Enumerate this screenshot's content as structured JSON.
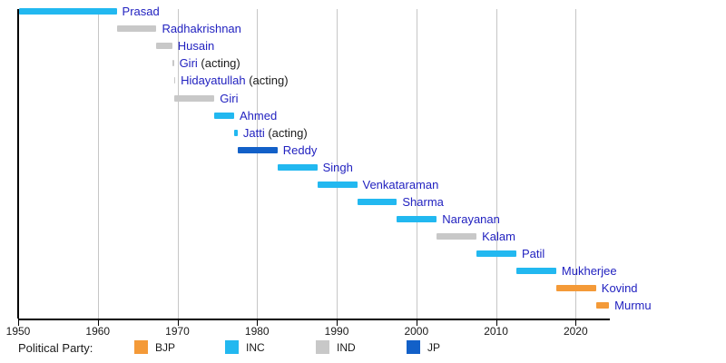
{
  "chart_data": {
    "type": "bar",
    "variant": "horizontal-gantt-timeline",
    "title": "",
    "x_axis": {
      "ticks": [
        "1950",
        "1960",
        "1970",
        "1980",
        "1990",
        "2000",
        "2010",
        "2020"
      ],
      "tick_years": [
        1950,
        1960,
        1970,
        1980,
        1990,
        2000,
        2010,
        2020
      ],
      "range": [
        1950,
        2024.3
      ],
      "grid": true
    },
    "parties": {
      "BJP": "#f49a38",
      "INC": "#22b8f0",
      "IND": "#c8c8c8",
      "JP": "#1260c8"
    },
    "bars": [
      {
        "label": "Prasad",
        "suffix": "",
        "party": "INC",
        "start": 1950.07,
        "end": 1962.37
      },
      {
        "label": "Radhakrishnan",
        "suffix": "",
        "party": "IND",
        "start": 1962.37,
        "end": 1967.37
      },
      {
        "label": "Husain",
        "suffix": "",
        "party": "IND",
        "start": 1967.37,
        "end": 1969.34
      },
      {
        "label": "Giri",
        "suffix": " (acting)",
        "party": "IND",
        "start": 1969.34,
        "end": 1969.55
      },
      {
        "label": "Hidayatullah",
        "suffix": " (acting)",
        "party": "IND",
        "start": 1969.55,
        "end": 1969.64
      },
      {
        "label": "Giri",
        "suffix": "",
        "party": "IND",
        "start": 1969.64,
        "end": 1974.64
      },
      {
        "label": "Ahmed",
        "suffix": "",
        "party": "INC",
        "start": 1974.64,
        "end": 1977.12
      },
      {
        "label": "Jatti",
        "suffix": " (acting)",
        "party": "INC",
        "start": 1977.12,
        "end": 1977.56
      },
      {
        "label": "Reddy",
        "suffix": "",
        "party": "JP",
        "start": 1977.56,
        "end": 1982.56
      },
      {
        "label": "Singh",
        "suffix": "",
        "party": "INC",
        "start": 1982.56,
        "end": 1987.56
      },
      {
        "label": "Venkataraman",
        "suffix": "",
        "party": "INC",
        "start": 1987.56,
        "end": 1992.56
      },
      {
        "label": "Sharma",
        "suffix": "",
        "party": "INC",
        "start": 1992.56,
        "end": 1997.56
      },
      {
        "label": "Narayanan",
        "suffix": "",
        "party": "INC",
        "start": 1997.56,
        "end": 2002.56
      },
      {
        "label": "Kalam",
        "suffix": "",
        "party": "IND",
        "start": 2002.56,
        "end": 2007.56
      },
      {
        "label": "Patil",
        "suffix": "",
        "party": "INC",
        "start": 2007.56,
        "end": 2012.56
      },
      {
        "label": "Mukherjee",
        "suffix": "",
        "party": "INC",
        "start": 2012.56,
        "end": 2017.56
      },
      {
        "label": "Kovind",
        "suffix": "",
        "party": "BJP",
        "start": 2017.56,
        "end": 2022.56
      },
      {
        "label": "Murmu",
        "suffix": "",
        "party": "BJP",
        "start": 2022.56,
        "end": 2024.2
      }
    ],
    "legend": {
      "title": "Political Party:",
      "entries": [
        {
          "label": "BJP",
          "party": "BJP"
        },
        {
          "label": "INC",
          "party": "INC"
        },
        {
          "label": "IND",
          "party": "IND"
        },
        {
          "label": "JP",
          "party": "JP"
        }
      ],
      "position": "bottom"
    }
  },
  "colors": {
    "name_link_blue": "#2222c0",
    "acting_text": "#1a1a1a",
    "grid": "#c6c6c6",
    "axis": "#000000",
    "background": "#ffffff"
  }
}
